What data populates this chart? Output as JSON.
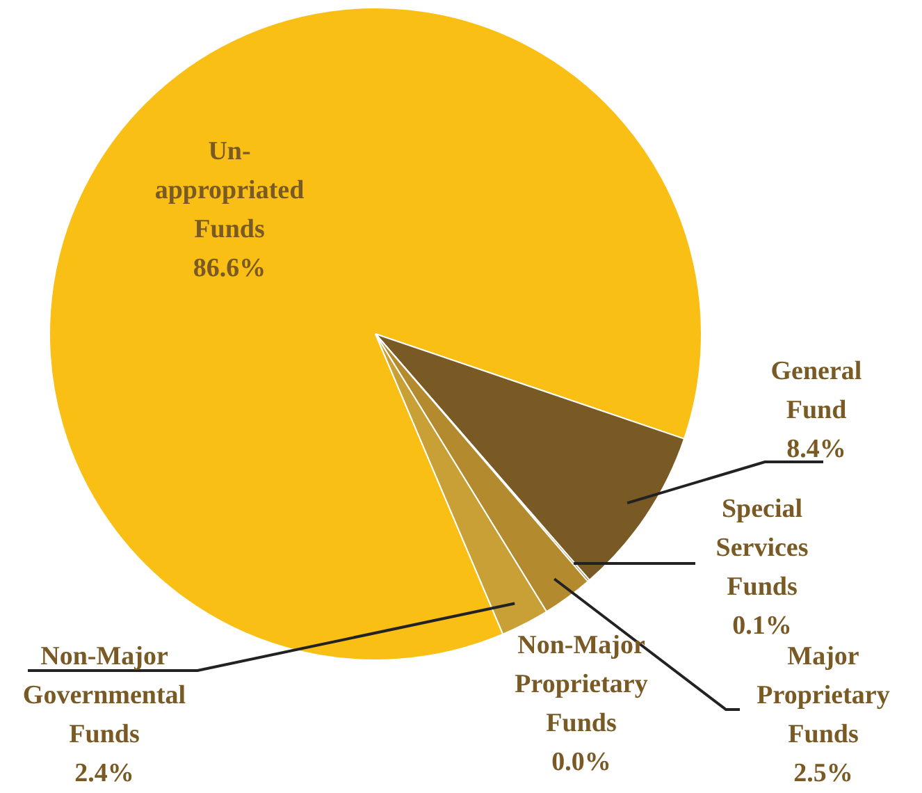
{
  "chart_data": {
    "type": "pie",
    "categories": [
      "Un-appropriated Funds",
      "General Fund",
      "Special Services Funds",
      "Major Proprietary Funds",
      "Non-Major Proprietary Funds",
      "Non-Major Governmental Funds"
    ],
    "values": [
      86.6,
      8.4,
      0.1,
      2.5,
      0.0,
      2.4
    ],
    "value_labels": [
      "86.6%",
      "8.4%",
      "0.1%",
      "2.5%",
      "0.0%",
      "2.4%"
    ],
    "colors": [
      "#f9bf15",
      "#7a5a24",
      "#9a7328",
      "#b38a2e",
      "#c19430",
      "#c9a035"
    ],
    "legend": false
  }
}
